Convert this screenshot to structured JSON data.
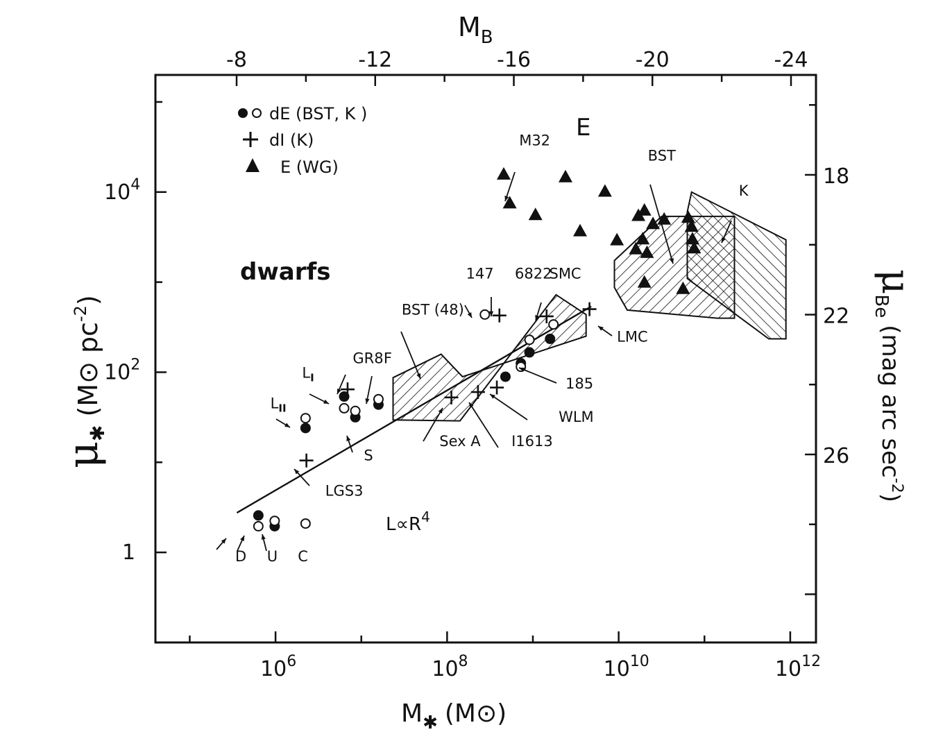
{
  "chart_data": {
    "type": "scatter",
    "title": "",
    "axes": {
      "bottom": {
        "label_main": "M",
        "label_sub": "✱",
        "label_unit": "(M⊙)",
        "scale": "log",
        "xlim_log10": [
          4.6,
          12.3
        ],
        "ticks": [
          {
            "log": 6,
            "mant": "10",
            "exp": "6"
          },
          {
            "log": 8,
            "mant": "10",
            "exp": "8"
          },
          {
            "log": 10,
            "mant": "10",
            "exp": "10"
          },
          {
            "log": 12,
            "mant": "10",
            "exp": "12"
          }
        ]
      },
      "left": {
        "label_main": "μ",
        "label_sub": "✱",
        "label_unit": "(M⊙ pc",
        "label_unit_exp": "-2",
        "label_unit_close": ")",
        "scale": "log",
        "ylim_log10": [
          -1,
          5.3
        ],
        "ticks": [
          {
            "log": 0,
            "mant": "1",
            "exp": ""
          },
          {
            "log": 2,
            "mant": "10",
            "exp": "2"
          },
          {
            "log": 4,
            "mant": "10",
            "exp": "4"
          }
        ]
      },
      "top": {
        "label_main": "M",
        "label_sub": "B",
        "ticks": [
          "-8",
          "-12",
          "-16",
          "-20",
          "-24"
        ],
        "tick_values": [
          -8,
          -12,
          -16,
          -20,
          -24
        ]
      },
      "right": {
        "label_main": "μ",
        "label_sub": "Be",
        "label_unit": "(mag arc sec",
        "label_unit_exp": "-2",
        "label_unit_close": ")",
        "ticks": [
          "18",
          "22",
          "26"
        ],
        "tick_values": [
          18,
          22,
          26
        ]
      }
    },
    "legend": {
      "placement": "top-left",
      "entries": [
        {
          "marker": "filled-open-circle",
          "label": "dE (BST, K )"
        },
        {
          "marker": "plus",
          "label": "dI (K)"
        },
        {
          "marker": "triangle",
          "label": "E (WG)"
        }
      ]
    },
    "region_labels": [
      "dwarfs",
      "E"
    ],
    "relation_label": {
      "text": "L∝R",
      "exp": "4"
    },
    "series": [
      {
        "name": "dE (BST, K )",
        "marker": "filled-circle",
        "points": [
          {
            "x": 5.8,
            "y": 0.41
          },
          {
            "x": 5.99,
            "y": 0.29
          },
          {
            "x": 6.35,
            "y": 1.38
          },
          {
            "x": 6.8,
            "y": 1.73
          },
          {
            "x": 6.93,
            "y": 1.5
          },
          {
            "x": 7.2,
            "y": 1.64
          },
          {
            "x": 8.68,
            "y": 1.95
          },
          {
            "x": 8.86,
            "y": 2.1
          },
          {
            "x": 8.96,
            "y": 2.22
          },
          {
            "x": 9.2,
            "y": 2.37
          }
        ]
      },
      {
        "name": "dE open",
        "marker": "open-circle",
        "points": [
          {
            "x": 5.8,
            "y": 0.29
          },
          {
            "x": 5.99,
            "y": 0.35
          },
          {
            "x": 6.35,
            "y": 0.32
          },
          {
            "x": 6.35,
            "y": 1.49
          },
          {
            "x": 6.8,
            "y": 1.6
          },
          {
            "x": 6.93,
            "y": 1.57
          },
          {
            "x": 7.2,
            "y": 1.7
          },
          {
            "x": 8.44,
            "y": 2.64
          },
          {
            "x": 8.86,
            "y": 2.06
          },
          {
            "x": 8.96,
            "y": 2.36
          },
          {
            "x": 9.24,
            "y": 2.53
          }
        ]
      },
      {
        "name": "dI (K)",
        "marker": "plus",
        "points": [
          {
            "x": 6.36,
            "y": 1.02
          },
          {
            "x": 6.84,
            "y": 1.81
          },
          {
            "x": 8.05,
            "y": 1.72
          },
          {
            "x": 8.36,
            "y": 1.78
          },
          {
            "x": 8.58,
            "y": 1.83
          },
          {
            "x": 8.61,
            "y": 2.63
          },
          {
            "x": 9.16,
            "y": 2.62
          },
          {
            "x": 9.66,
            "y": 2.7
          }
        ]
      },
      {
        "name": "E (WG)",
        "marker": "triangle",
        "points": [
          {
            "x": 8.66,
            "y": 4.2
          },
          {
            "x": 8.73,
            "y": 3.88
          },
          {
            "x": 9.03,
            "y": 3.75
          },
          {
            "x": 9.38,
            "y": 4.17
          },
          {
            "x": 9.55,
            "y": 3.57
          },
          {
            "x": 9.84,
            "y": 4.01
          },
          {
            "x": 9.98,
            "y": 3.47
          },
          {
            "x": 10.2,
            "y": 3.37
          },
          {
            "x": 10.23,
            "y": 3.74
          },
          {
            "x": 10.28,
            "y": 3.48
          },
          {
            "x": 10.3,
            "y": 3.0
          },
          {
            "x": 10.3,
            "y": 3.8
          },
          {
            "x": 10.33,
            "y": 3.33
          },
          {
            "x": 10.4,
            "y": 3.65
          },
          {
            "x": 10.53,
            "y": 3.7
          },
          {
            "x": 10.75,
            "y": 2.93
          },
          {
            "x": 10.81,
            "y": 3.72
          },
          {
            "x": 10.85,
            "y": 3.62
          },
          {
            "x": 10.86,
            "y": 3.48
          },
          {
            "x": 10.88,
            "y": 3.38
          }
        ]
      }
    ],
    "relation_line": {
      "points": [
        {
          "x": 5.55,
          "y": 0.44
        },
        {
          "x": 9.68,
          "y": 2.73
        }
      ]
    },
    "regions": [
      {
        "name": "BST (48)",
        "shape": "hatched-polygon",
        "vertices": [
          {
            "x": 7.37,
            "y": 1.47
          },
          {
            "x": 8.15,
            "y": 1.46
          },
          {
            "x": 9.27,
            "y": 2.86
          },
          {
            "x": 9.62,
            "y": 2.64
          },
          {
            "x": 9.62,
            "y": 2.4
          },
          {
            "x": 8.18,
            "y": 1.95
          },
          {
            "x": 7.93,
            "y": 2.2
          },
          {
            "x": 7.37,
            "y": 1.94
          }
        ]
      },
      {
        "name": "BST",
        "shape": "hatched-polygon",
        "vertices": [
          {
            "x": 9.95,
            "y": 2.94
          },
          {
            "x": 9.95,
            "y": 3.24
          },
          {
            "x": 10.5,
            "y": 3.73
          },
          {
            "x": 11.35,
            "y": 3.73
          },
          {
            "x": 11.35,
            "y": 2.6
          },
          {
            "x": 11.15,
            "y": 2.6
          },
          {
            "x": 10.1,
            "y": 2.69
          },
          {
            "x": 9.95,
            "y": 2.94
          }
        ]
      },
      {
        "name": "K",
        "shape": "hatched-polygon",
        "vertices": [
          {
            "x": 10.8,
            "y": 3.78
          },
          {
            "x": 10.85,
            "y": 4.0
          },
          {
            "x": 11.95,
            "y": 3.47
          },
          {
            "x": 11.95,
            "y": 2.37
          },
          {
            "x": 11.75,
            "y": 2.37
          },
          {
            "x": 10.8,
            "y": 3.04
          },
          {
            "x": 10.8,
            "y": 3.78
          }
        ]
      }
    ],
    "annotations": [
      {
        "text": "M32",
        "x": 8.84,
        "y": 4.52
      },
      {
        "text": "BST",
        "x": 10.34,
        "y": 4.35
      },
      {
        "text": "K",
        "x": 11.4,
        "y": 3.96
      },
      {
        "text": "147",
        "x": 8.22,
        "y": 3.04
      },
      {
        "text": "6822",
        "x": 8.79,
        "y": 3.04
      },
      {
        "text": "SMC",
        "x": 9.19,
        "y": 3.04
      },
      {
        "text": "BST (48)",
        "x": 7.47,
        "y": 2.64
      },
      {
        "text": "LMC",
        "x": 9.98,
        "y": 2.34
      },
      {
        "text": "185",
        "x": 9.38,
        "y": 1.82
      },
      {
        "text": "WLM",
        "x": 9.3,
        "y": 1.45
      },
      {
        "text": "I1613",
        "x": 8.75,
        "y": 1.18
      },
      {
        "text": "Sex A",
        "x": 7.91,
        "y": 1.18
      },
      {
        "text": "GR8",
        "x": 6.9,
        "y": 2.1
      },
      {
        "text": "F",
        "x": 7.26,
        "y": 2.1
      },
      {
        "text": "L",
        "sub": "I",
        "x": 6.31,
        "y": 1.94
      },
      {
        "text": "L",
        "sub": "II",
        "x": 5.94,
        "y": 1.6
      },
      {
        "text": "S",
        "x": 7.03,
        "y": 1.02
      },
      {
        "text": "LGS3",
        "x": 6.58,
        "y": 0.63
      },
      {
        "text": "D",
        "x": 5.53,
        "y": -0.1
      },
      {
        "text": "U",
        "x": 5.9,
        "y": -0.1
      },
      {
        "text": "C",
        "x": 6.26,
        "y": -0.1
      }
    ]
  }
}
